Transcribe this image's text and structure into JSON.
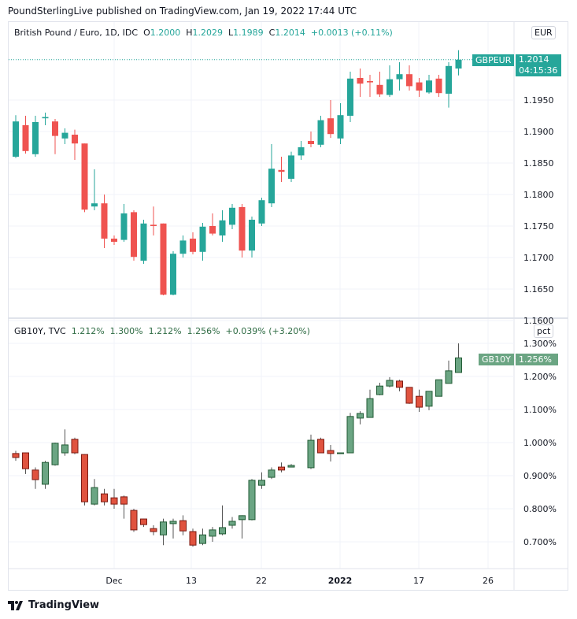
{
  "published": "PoundSterlingLive published on TradingView.com, Jan 19, 2022 17:44 UTC",
  "footer": {
    "brand": "TradingView",
    "logo_icon": "tradingview-logo-icon"
  },
  "colors": {
    "up1": "#26a69a",
    "down1": "#ef5350",
    "up2": "#6ba583",
    "up2_border": "#225b35",
    "down2": "#e0533f",
    "down2_border": "#7c1c14",
    "grid": "#f0f3fa"
  },
  "chart_data": [
    {
      "type": "candlestick",
      "title": "British Pound / Euro, 1D, IDC",
      "legend": {
        "o_label": "O",
        "o": "1.2000",
        "h_label": "H",
        "h": "1.2029",
        "l_label": "L",
        "l": "1.1989",
        "c_label": "C",
        "c": "1.2014",
        "change": "+0.0013 (+0.11%)"
      },
      "currency_badge": "EUR",
      "last_price_tag": {
        "symbol": "GBPEUR",
        "price": "1.2014",
        "countdown": "04:15:36"
      },
      "ylim": [
        1.1595,
        1.207
      ],
      "y_ticks": [
        "1.1950",
        "1.1900",
        "1.1850",
        "1.1800",
        "1.1750",
        "1.1700",
        "1.1650",
        "1.1600"
      ],
      "y_tick_values": [
        1.195,
        1.19,
        1.185,
        1.18,
        1.175,
        1.17,
        1.165,
        1.16
      ],
      "grid": true,
      "candles": [
        [
          1.186,
          1.1926,
          1.1858,
          1.1916
        ],
        [
          1.191,
          1.1925,
          1.1865,
          1.1869
        ],
        [
          1.1864,
          1.1925,
          1.186,
          1.1915
        ],
        [
          1.1921,
          1.193,
          1.191,
          1.1923
        ],
        [
          1.1916,
          1.192,
          1.1864,
          1.1893
        ],
        [
          1.1889,
          1.1905,
          1.188,
          1.1898
        ],
        [
          1.1895,
          1.1903,
          1.1855,
          1.1881
        ],
        [
          1.1881,
          1.1881,
          1.1772,
          1.1776
        ],
        [
          1.1781,
          1.184,
          1.1775,
          1.1786
        ],
        [
          1.1786,
          1.18,
          1.1715,
          1.173
        ],
        [
          1.173,
          1.1735,
          1.172,
          1.1725
        ],
        [
          1.1728,
          1.1785,
          1.1725,
          1.177
        ],
        [
          1.1772,
          1.1775,
          1.1695,
          1.1701
        ],
        [
          1.1695,
          1.176,
          1.169,
          1.1754
        ],
        [
          1.1752,
          1.1781,
          1.1735,
          1.175
        ],
        [
          1.1754,
          1.1754,
          1.164,
          1.1641
        ],
        [
          1.1641,
          1.171,
          1.164,
          1.1706
        ],
        [
          1.1706,
          1.1735,
          1.17,
          1.1727
        ],
        [
          1.173,
          1.174,
          1.1705,
          1.1709
        ],
        [
          1.1709,
          1.1755,
          1.1695,
          1.1749
        ],
        [
          1.175,
          1.177,
          1.1735,
          1.1738
        ],
        [
          1.1735,
          1.1775,
          1.1725,
          1.1759
        ],
        [
          1.1752,
          1.1785,
          1.1745,
          1.1779
        ],
        [
          1.178,
          1.1785,
          1.17,
          1.1711
        ],
        [
          1.1711,
          1.1765,
          1.17,
          1.176
        ],
        [
          1.1754,
          1.1795,
          1.175,
          1.1791
        ],
        [
          1.1786,
          1.188,
          1.178,
          1.1841
        ],
        [
          1.1839,
          1.186,
          1.182,
          1.1836
        ],
        [
          1.1825,
          1.1868,
          1.182,
          1.1862
        ],
        [
          1.1862,
          1.1885,
          1.1855,
          1.1875
        ],
        [
          1.1885,
          1.19,
          1.1875,
          1.188
        ],
        [
          1.1879,
          1.1925,
          1.1875,
          1.1918
        ],
        [
          1.1921,
          1.195,
          1.189,
          1.1896
        ],
        [
          1.1889,
          1.1945,
          1.188,
          1.1926
        ],
        [
          1.1925,
          1.1995,
          1.1915,
          1.1984
        ],
        [
          1.1985,
          1.2,
          1.1955,
          1.1976
        ],
        [
          1.198,
          1.199,
          1.1955,
          1.1978
        ],
        [
          1.1974,
          1.1995,
          1.1955,
          1.1959
        ],
        [
          1.1958,
          1.2005,
          1.1955,
          1.1983
        ],
        [
          1.1983,
          1.201,
          1.1965,
          1.1991
        ],
        [
          1.1991,
          1.2005,
          1.1965,
          1.1972
        ],
        [
          1.1978,
          1.1985,
          1.1955,
          1.1965
        ],
        [
          1.1962,
          1.199,
          1.196,
          1.1981
        ],
        [
          1.1984,
          1.199,
          1.1955,
          1.1961
        ],
        [
          1.196,
          1.201,
          1.1938,
          1.2004
        ],
        [
          1.2,
          1.2029,
          1.1989,
          1.2014
        ]
      ],
      "candle_format": [
        "open",
        "high",
        "low",
        "close"
      ]
    },
    {
      "type": "candlestick",
      "title": "GB10Y, TVC",
      "legend": {
        "o": "1.212%",
        "h": "1.300%",
        "l": "1.212%",
        "c": "1.256%",
        "change": "+0.039% (+3.20%)"
      },
      "unit_badge": "pct",
      "last_price_tag": {
        "symbol": "GB10Y",
        "price": "1.256%"
      },
      "ylim": [
        0.62,
        1.32
      ],
      "y_ticks": [
        "1.300%",
        "1.200%",
        "1.100%",
        "1.000%",
        "0.900%",
        "0.800%",
        "0.700%"
      ],
      "y_tick_values": [
        1.3,
        1.2,
        1.1,
        1.0,
        0.9,
        0.8,
        0.7
      ],
      "grid": true,
      "candles": [
        [
          0.967,
          0.975,
          0.945,
          0.955
        ],
        [
          0.969,
          0.97,
          0.905,
          0.921
        ],
        [
          0.917,
          0.925,
          0.86,
          0.888
        ],
        [
          0.874,
          0.945,
          0.86,
          0.94
        ],
        [
          0.933,
          1.0,
          0.93,
          0.998
        ],
        [
          0.969,
          1.04,
          0.96,
          0.993
        ],
        [
          1.01,
          1.015,
          0.965,
          0.969
        ],
        [
          0.964,
          0.965,
          0.81,
          0.821
        ],
        [
          0.814,
          0.89,
          0.81,
          0.864
        ],
        [
          0.845,
          0.86,
          0.81,
          0.821
        ],
        [
          0.833,
          0.86,
          0.8,
          0.814
        ],
        [
          0.836,
          0.84,
          0.77,
          0.814
        ],
        [
          0.795,
          0.8,
          0.73,
          0.736
        ],
        [
          0.769,
          0.77,
          0.745,
          0.752
        ],
        [
          0.74,
          0.75,
          0.72,
          0.731
        ],
        [
          0.721,
          0.77,
          0.69,
          0.76
        ],
        [
          0.755,
          0.77,
          0.71,
          0.762
        ],
        [
          0.764,
          0.78,
          0.72,
          0.733
        ],
        [
          0.731,
          0.74,
          0.685,
          0.69
        ],
        [
          0.695,
          0.74,
          0.69,
          0.721
        ],
        [
          0.717,
          0.745,
          0.7,
          0.736
        ],
        [
          0.724,
          0.81,
          0.72,
          0.743
        ],
        [
          0.75,
          0.775,
          0.74,
          0.762
        ],
        [
          0.767,
          0.78,
          0.71,
          0.779
        ],
        [
          0.767,
          0.89,
          0.765,
          0.886
        ],
        [
          0.871,
          0.91,
          0.86,
          0.886
        ],
        [
          0.895,
          0.925,
          0.89,
          0.917
        ],
        [
          0.926,
          0.94,
          0.91,
          0.917
        ],
        [
          0.926,
          0.935,
          0.925,
          0.931
        ],
        null,
        [
          0.924,
          1.024,
          0.92,
          1.007
        ],
        [
          1.01,
          1.015,
          0.969,
          0.969
        ],
        [
          0.976,
          0.993,
          0.943,
          0.967
        ],
        [
          0.969,
          0.969,
          0.969,
          0.969
        ],
        [
          0.969,
          1.09,
          0.969,
          1.079
        ],
        [
          1.074,
          1.095,
          1.055,
          1.088
        ],
        [
          1.076,
          1.16,
          1.076,
          1.133
        ],
        [
          1.145,
          1.181,
          1.143,
          1.171
        ],
        [
          1.171,
          1.198,
          1.167,
          1.188
        ],
        [
          1.186,
          1.19,
          1.155,
          1.167
        ],
        [
          1.167,
          1.167,
          1.117,
          1.119
        ],
        [
          1.14,
          1.16,
          1.093,
          1.107
        ],
        [
          1.11,
          1.155,
          1.098,
          1.155
        ],
        [
          1.14,
          1.19,
          1.14,
          1.19
        ],
        [
          1.179,
          1.248,
          1.179,
          1.217
        ],
        [
          1.212,
          1.3,
          1.212,
          1.256
        ]
      ],
      "candle_format": [
        "open",
        "high",
        "low",
        "close"
      ]
    }
  ],
  "x_axis": {
    "ticks": [
      {
        "label": "Dec",
        "bar": 11
      },
      {
        "label": "13",
        "bar": 18.84
      },
      {
        "label": "22",
        "bar": 25.96
      },
      {
        "label": "2022",
        "bar": 33.96,
        "bold": true
      },
      {
        "label": "17",
        "bar": 41.96
      },
      {
        "label": "26",
        "bar": 49.0
      }
    ]
  }
}
